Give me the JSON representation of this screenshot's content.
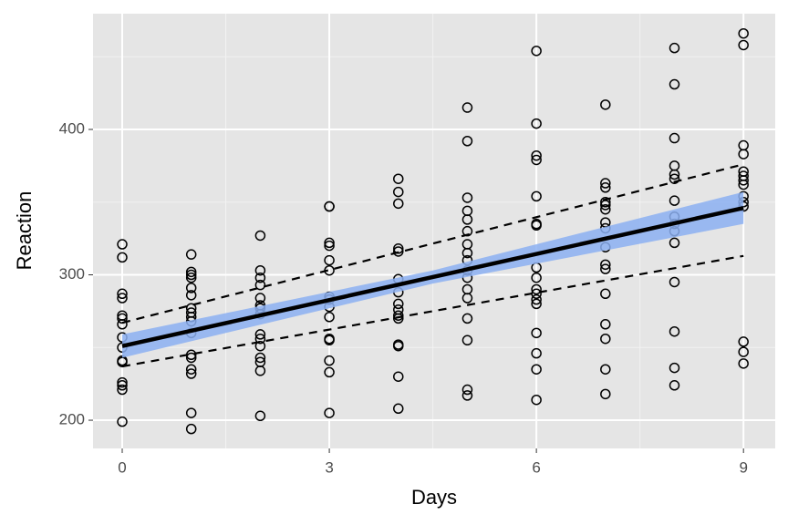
{
  "chart_data": {
    "type": "scatter",
    "x_label": "Days",
    "y_label": "Reaction",
    "xlim": [
      -0.423,
      9.46
    ],
    "ylim": [
      180.6,
      479.6
    ],
    "xticks": [
      0,
      3,
      6,
      9
    ],
    "yticks": [
      200,
      300,
      400
    ],
    "xminorticks": [
      1.5,
      4.5,
      7.5
    ],
    "yminorticks": [
      250,
      350,
      450
    ],
    "grid": true,
    "point_color": "#000000",
    "groups": [
      {
        "x": 0,
        "y": [
          321,
          312,
          287,
          284,
          272,
          270,
          266,
          257,
          250,
          241,
          240,
          226,
          224,
          221,
          199
        ]
      },
      {
        "x": 1,
        "y": [
          314,
          302,
          300,
          298,
          291,
          286,
          277,
          274,
          271,
          268,
          260,
          245,
          243,
          235,
          232,
          205,
          194
        ]
      },
      {
        "x": 2,
        "y": [
          327,
          303,
          298,
          293,
          284,
          279,
          277,
          273,
          259,
          256,
          251,
          243,
          240,
          234,
          203
        ]
      },
      {
        "x": 3,
        "y": [
          347,
          347,
          322,
          320,
          310,
          303,
          285,
          283,
          278,
          271,
          256,
          255,
          241,
          233,
          205
        ]
      },
      {
        "x": 4,
        "y": [
          366,
          357,
          349,
          318,
          316,
          297,
          288,
          280,
          276,
          272,
          270,
          252,
          251,
          230,
          208
        ]
      },
      {
        "x": 5,
        "y": [
          415,
          392,
          353,
          344,
          338,
          330,
          321,
          315,
          310,
          303,
          298,
          290,
          284,
          270,
          255,
          221,
          217
        ]
      },
      {
        "x": 6,
        "y": [
          454,
          404,
          382,
          379,
          354,
          335,
          334,
          305,
          298,
          290,
          287,
          283,
          280,
          260,
          246,
          235,
          214
        ]
      },
      {
        "x": 7,
        "y": [
          417,
          363,
          360,
          350,
          348,
          345,
          336,
          332,
          319,
          307,
          304,
          287,
          266,
          256,
          235,
          218
        ]
      },
      {
        "x": 8,
        "y": [
          456,
          431,
          394,
          375,
          369,
          366,
          351,
          340,
          335,
          330,
          322,
          295,
          261,
          236,
          224
        ]
      },
      {
        "x": 9,
        "y": [
          466,
          458,
          389,
          383,
          371,
          368,
          365,
          362,
          354,
          350,
          347,
          254,
          247,
          239
        ]
      }
    ],
    "ribbon": {
      "x": [
        0,
        4.5,
        9
      ],
      "lower": [
        243,
        294,
        335
      ],
      "upper": [
        259,
        303,
        357
      ],
      "color": "#8cb0f2"
    },
    "fit": {
      "x": [
        0,
        9
      ],
      "y": [
        251,
        346
      ],
      "color": "#000000"
    },
    "bands": [
      {
        "x": [
          0,
          9
        ],
        "y": [
          267,
          376
        ],
        "color": "#000000"
      },
      {
        "x": [
          0,
          9
        ],
        "y": [
          237,
          313
        ],
        "color": "#000000"
      }
    ]
  }
}
